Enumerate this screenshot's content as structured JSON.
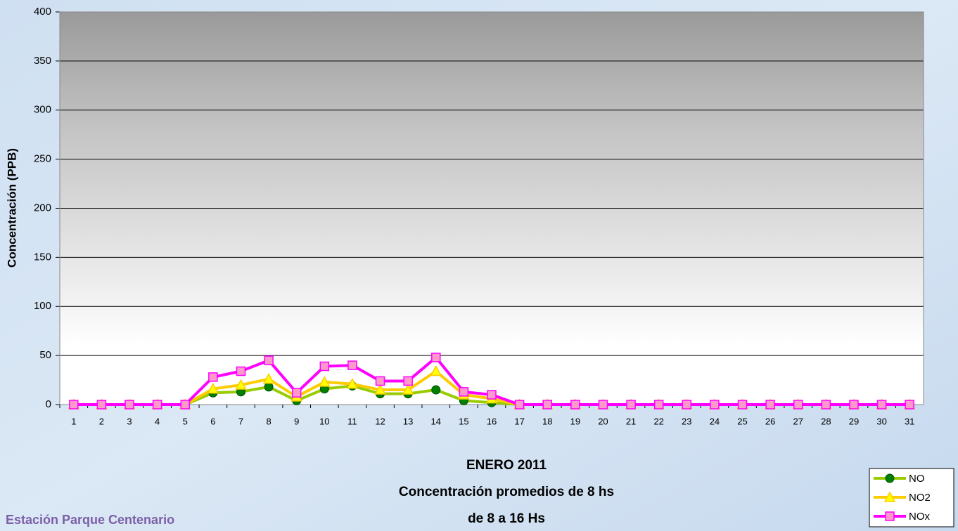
{
  "chart_data": {
    "type": "line",
    "title_lines": [
      "ENERO 2011",
      "Concentración promedios de 8 hs",
      "de 8 a 16 Hs"
    ],
    "annotation": "Estación Parque Centenario",
    "y_label": "Concentración (PPB)",
    "categories": [
      "1",
      "2",
      "3",
      "4",
      "5",
      "6",
      "7",
      "8",
      "9",
      "10",
      "11",
      "12",
      "13",
      "14",
      "15",
      "16",
      "17",
      "18",
      "19",
      "20",
      "21",
      "22",
      "23",
      "24",
      "25",
      "26",
      "27",
      "28",
      "29",
      "30",
      "31"
    ],
    "series": [
      {
        "name": "NO",
        "color": "#99cc00",
        "marker_color": "#008000",
        "marker": "circle",
        "values": [
          0,
          0,
          0,
          0,
          0,
          12,
          13,
          18,
          4,
          16,
          19,
          11,
          11,
          15,
          4,
          2,
          0,
          0,
          0,
          0,
          0,
          0,
          0,
          0,
          0,
          0,
          0,
          0,
          0,
          0,
          0
        ]
      },
      {
        "name": "NO2",
        "color": "#ffcc00",
        "marker_color": "#ffff00",
        "marker": "triangle",
        "values": [
          0,
          0,
          0,
          0,
          0,
          16,
          20,
          26,
          8,
          23,
          21,
          15,
          15,
          34,
          10,
          6,
          0,
          0,
          0,
          0,
          0,
          0,
          0,
          0,
          0,
          0,
          0,
          0,
          0,
          0,
          0
        ]
      },
      {
        "name": "NOx",
        "color": "#ff00ff",
        "marker_color": "#ff99cc",
        "marker": "square",
        "values": [
          0,
          0,
          0,
          0,
          0,
          28,
          34,
          45,
          12,
          39,
          40,
          24,
          24,
          48,
          13,
          10,
          0,
          0,
          0,
          0,
          0,
          0,
          0,
          0,
          0,
          0,
          0,
          0,
          0,
          0,
          0
        ]
      }
    ],
    "ylim": [
      0,
      400
    ],
    "yticks": [
      0,
      50,
      100,
      150,
      200,
      250,
      300,
      350,
      400
    ],
    "grid": true,
    "legend": "bottom-right"
  }
}
